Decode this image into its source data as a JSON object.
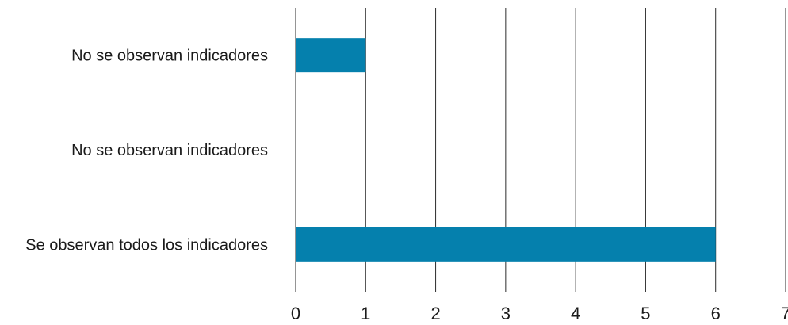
{
  "chart_data": {
    "type": "bar",
    "orientation": "horizontal",
    "categories": [
      "No se observan indicadores",
      "No se observan indicadores",
      "Se observan todos los indicadores"
    ],
    "values": [
      1,
      0,
      6
    ],
    "xlim": [
      0,
      7
    ],
    "xticks": [
      "0",
      "1",
      "2",
      "3",
      "4",
      "5",
      "6",
      "7"
    ],
    "grid": "vertical",
    "legend": "none",
    "colors": {
      "bar": "#0580ad",
      "grid": "#2b2b2b",
      "text": "#1a1a1a"
    }
  }
}
